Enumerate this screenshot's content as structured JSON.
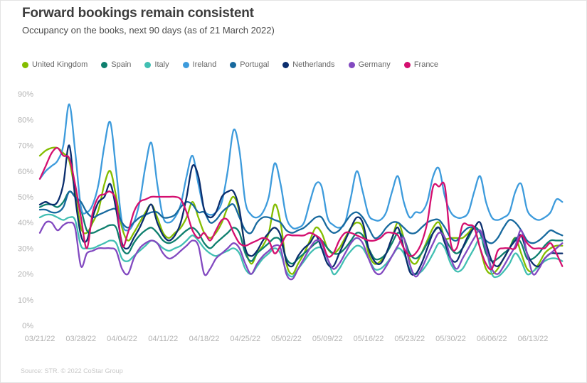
{
  "header": {
    "title": "Forward bookings remain consistent",
    "subtitle": "Occupancy on the books, next 90 days (as of 21 March 2022)"
  },
  "footer": {
    "source": "Source: STR. © 2022 CoStar Group"
  },
  "chart_data": {
    "type": "line",
    "title": "Forward bookings remain consistent",
    "subtitle": "Occupancy on the books, next 90 days (as of 21 March 2022)",
    "x_unit": "day",
    "x_start_date": "03/21/22",
    "x_tick_labels": [
      "03/21/22",
      "03/28/22",
      "04/04/22",
      "04/11/22",
      "04/18/22",
      "04/25/22",
      "05/02/22",
      "05/09/22",
      "05/16/22",
      "05/23/22",
      "05/30/22",
      "06/06/22",
      "06/13/22"
    ],
    "y_tick_labels": [
      "90%",
      "80%",
      "70%",
      "60%",
      "50%",
      "40%",
      "30%",
      "20%",
      "10%",
      "0%"
    ],
    "ylim": [
      0,
      90
    ],
    "grid": false,
    "legend_position": "top",
    "series": [
      {
        "name": "United Kingdom",
        "color": "#84BD00",
        "values": [
          66,
          68,
          69,
          69,
          67,
          64,
          52,
          38,
          36,
          40,
          45,
          55,
          60,
          50,
          38,
          33,
          36,
          40,
          44,
          47,
          42,
          36,
          34,
          36,
          38,
          42,
          48,
          42,
          36,
          34,
          36,
          40,
          46,
          50,
          44,
          30,
          24,
          28,
          31,
          36,
          47,
          40,
          24,
          20,
          24,
          28,
          33,
          38,
          36,
          30,
          28,
          30,
          34,
          38,
          40,
          38,
          28,
          24,
          25,
          28,
          34,
          40,
          34,
          26,
          24,
          28,
          33,
          38,
          40,
          34,
          34,
          34,
          34,
          36,
          38,
          30,
          22,
          20,
          22,
          26,
          30,
          34,
          28,
          22,
          21,
          24,
          28,
          30,
          31,
          31
        ]
      },
      {
        "name": "Spain",
        "color": "#0E7F6E",
        "values": [
          46,
          47,
          47,
          46,
          48,
          52,
          50,
          45,
          37,
          36,
          37,
          38,
          39,
          38,
          30,
          28,
          32,
          35,
          37,
          38,
          36,
          33,
          32,
          33,
          35,
          37,
          38,
          36,
          32,
          30,
          32,
          34,
          36,
          38,
          36,
          28,
          25,
          28,
          30,
          32,
          34,
          33,
          26,
          24,
          26,
          28,
          30,
          32,
          33,
          30,
          28,
          28,
          30,
          33,
          36,
          35,
          30,
          26,
          26,
          28,
          32,
          36,
          34,
          28,
          26,
          28,
          32,
          36,
          38,
          34,
          30,
          28,
          30,
          34,
          38,
          36,
          28,
          25,
          26,
          28,
          30,
          34,
          32,
          26,
          26,
          28,
          31,
          33,
          33,
          33
        ]
      },
      {
        "name": "Italy",
        "color": "#41BFB2",
        "values": [
          42,
          43,
          43,
          42,
          41,
          42,
          41,
          31,
          30,
          30,
          31,
          32,
          33,
          32,
          26,
          25,
          27,
          29,
          31,
          33,
          32,
          30,
          29,
          30,
          31,
          33,
          35,
          33,
          30,
          28,
          27,
          28,
          29,
          30,
          28,
          22,
          20,
          23,
          26,
          28,
          30,
          28,
          21,
          19,
          22,
          25,
          28,
          30,
          30,
          26,
          20,
          22,
          26,
          29,
          31,
          30,
          26,
          22,
          22,
          24,
          27,
          30,
          28,
          22,
          20,
          21,
          24,
          28,
          32,
          30,
          24,
          21,
          22,
          26,
          30,
          34,
          30,
          20,
          19,
          21,
          24,
          28,
          25,
          20,
          21,
          23,
          25,
          26,
          26,
          25
        ]
      },
      {
        "name": "Ireland",
        "color": "#3D9BDC",
        "values": [
          57,
          60,
          62,
          64,
          70,
          86,
          68,
          46,
          44,
          47,
          55,
          70,
          79,
          60,
          40,
          37,
          40,
          48,
          62,
          71,
          55,
          42,
          40,
          42,
          47,
          58,
          66,
          55,
          45,
          43,
          44,
          48,
          60,
          76,
          68,
          48,
          43,
          42,
          44,
          50,
          63,
          55,
          42,
          38,
          38,
          40,
          48,
          55,
          54,
          42,
          39,
          38,
          40,
          50,
          60,
          52,
          43,
          41,
          41,
          44,
          52,
          58,
          48,
          42,
          44,
          44,
          48,
          58,
          61,
          50,
          44,
          42,
          42,
          44,
          52,
          58,
          48,
          42,
          41,
          42,
          44,
          52,
          55,
          45,
          42,
          41,
          42,
          44,
          49,
          48
        ]
      },
      {
        "name": "Portugal",
        "color": "#17699E",
        "values": [
          45,
          45,
          44,
          44,
          46,
          52,
          50,
          48,
          44,
          42,
          43,
          44,
          45,
          45,
          40,
          38,
          40,
          42,
          43,
          44,
          44,
          42,
          42,
          43,
          46,
          48,
          47,
          44,
          44,
          40,
          41,
          44,
          46,
          47,
          42,
          37,
          36,
          40,
          42,
          42,
          41,
          40,
          37,
          36,
          37,
          38,
          40,
          42,
          42,
          38,
          36,
          37,
          40,
          43,
          44,
          42,
          38,
          34,
          35,
          38,
          40,
          40,
          38,
          36,
          36,
          38,
          40,
          41,
          41,
          38,
          34,
          33,
          36,
          38,
          38,
          36,
          33,
          32,
          34,
          38,
          41,
          40,
          37,
          33,
          32,
          33,
          35,
          37,
          36,
          35
        ]
      },
      {
        "name": "Netherlands",
        "color": "#0B2E6E",
        "values": [
          47,
          48,
          47,
          48,
          55,
          70,
          50,
          35,
          33,
          42,
          48,
          50,
          55,
          45,
          32,
          30,
          34,
          38,
          43,
          47,
          40,
          35,
          33,
          35,
          40,
          50,
          62,
          58,
          45,
          42,
          44,
          50,
          52,
          52,
          45,
          30,
          27,
          29,
          33,
          36,
          38,
          35,
          25,
          23,
          27,
          30,
          32,
          35,
          30,
          24,
          23,
          28,
          33,
          38,
          42,
          40,
          30,
          25,
          24,
          28,
          34,
          38,
          30,
          21,
          20,
          24,
          30,
          36,
          38,
          32,
          26,
          25,
          30,
          35,
          38,
          40,
          32,
          25,
          23,
          26,
          30,
          33,
          35,
          28,
          24,
          23,
          26,
          28,
          28,
          28
        ]
      },
      {
        "name": "Germany",
        "color": "#8249C0",
        "values": [
          36,
          40,
          40,
          37,
          39,
          40,
          38,
          23,
          28,
          29,
          30,
          30,
          30,
          29,
          22,
          20,
          26,
          30,
          32,
          33,
          32,
          28,
          26,
          27,
          29,
          31,
          33,
          31,
          20,
          22,
          26,
          28,
          30,
          32,
          30,
          24,
          20,
          24,
          27,
          29,
          31,
          30,
          20,
          18,
          22,
          26,
          30,
          33,
          32,
          26,
          22,
          24,
          28,
          32,
          34,
          32,
          26,
          21,
          20,
          23,
          27,
          31,
          34,
          24,
          19,
          22,
          27,
          32,
          36,
          34,
          26,
          22,
          26,
          30,
          34,
          37,
          30,
          22,
          20,
          23,
          27,
          31,
          37,
          28,
          20,
          22,
          26,
          28,
          30,
          32
        ]
      },
      {
        "name": "France",
        "color": "#D40F6F",
        "values": [
          57,
          62,
          67,
          69,
          66,
          65,
          55,
          42,
          30,
          44,
          50,
          51,
          52,
          48,
          31,
          36,
          44,
          48,
          49,
          50,
          50,
          50,
          50,
          50,
          49,
          44,
          37,
          34,
          36,
          33,
          37,
          41,
          41,
          36,
          32,
          31,
          32,
          33,
          34,
          33,
          28,
          31,
          35,
          35,
          35,
          35,
          36,
          35,
          33,
          27,
          28,
          33,
          36,
          36,
          35,
          34,
          33,
          33,
          34,
          36,
          36,
          35,
          30,
          27,
          28,
          32,
          40,
          54,
          54,
          54,
          32,
          30,
          39,
          39,
          38,
          30,
          24,
          22,
          29,
          30,
          30,
          30,
          35,
          32,
          30,
          30,
          30,
          32,
          28,
          23
        ]
      }
    ]
  }
}
